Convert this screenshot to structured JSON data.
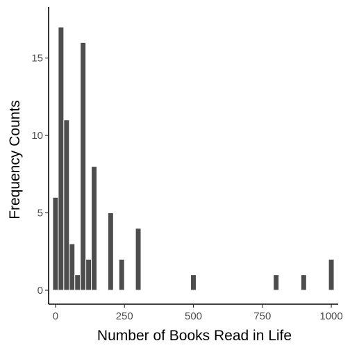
{
  "chart_data": {
    "type": "bar",
    "title": "",
    "xlabel": "Number of Books Read in Life",
    "ylabel": "Frequency Counts",
    "xlim": [
      -25,
      1025
    ],
    "ylim": [
      -0.9,
      18.3
    ],
    "x_ticks": [
      0,
      250,
      500,
      750,
      1000
    ],
    "x_tick_labels": [
      "0",
      "250",
      "500",
      "750",
      "1000"
    ],
    "y_ticks": [
      0,
      5,
      10,
      15
    ],
    "y_tick_labels": [
      "0",
      "5",
      "10",
      "15"
    ],
    "bin_width": 20,
    "bins": [
      {
        "x": 0,
        "count": 6
      },
      {
        "x": 20,
        "count": 17
      },
      {
        "x": 40,
        "count": 11
      },
      {
        "x": 60,
        "count": 3
      },
      {
        "x": 80,
        "count": 1
      },
      {
        "x": 100,
        "count": 16
      },
      {
        "x": 120,
        "count": 2
      },
      {
        "x": 140,
        "count": 8
      },
      {
        "x": 200,
        "count": 5
      },
      {
        "x": 240,
        "count": 2
      },
      {
        "x": 300,
        "count": 4
      },
      {
        "x": 500,
        "count": 1
      },
      {
        "x": 800,
        "count": 1
      },
      {
        "x": 900,
        "count": 1
      },
      {
        "x": 1000,
        "count": 2
      }
    ],
    "bar_color": "#4d4d4d",
    "grid": false
  }
}
